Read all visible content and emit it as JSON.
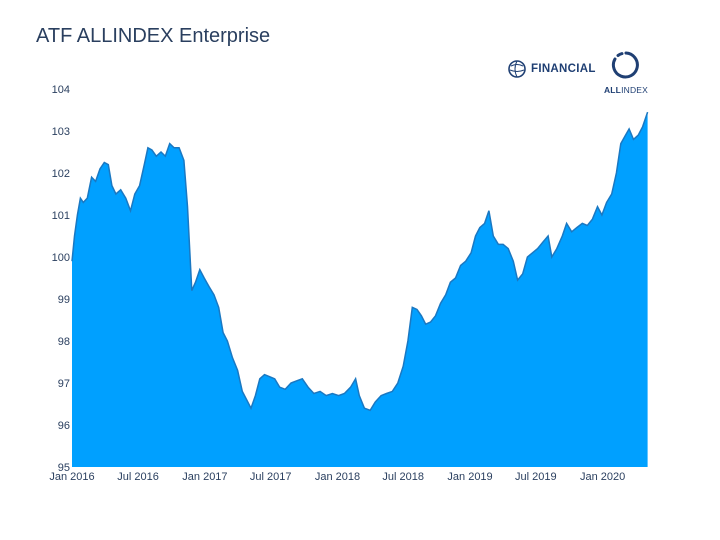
{
  "title": "ATF ALLINDEX Enterprise",
  "logos": {
    "financial": "FINANCIAL",
    "allindex_bold": "ALL",
    "allindex_rest": "INDEX"
  },
  "colors": {
    "fill": "#00a0ff",
    "line": "#1a78c2",
    "title": "#2a3f5f"
  },
  "chart_data": {
    "type": "area",
    "title": "ATF ALLINDEX Enterprise",
    "xlabel": "",
    "ylabel": "",
    "ylim": [
      95,
      104
    ],
    "xlim": [
      "2016-01-01",
      "2020-05-05"
    ],
    "grid": false,
    "yticks": [
      95,
      96,
      97,
      98,
      99,
      100,
      101,
      102,
      103,
      104
    ],
    "xticks": [
      {
        "date": "2016-01-01",
        "label": "Jan 2016"
      },
      {
        "date": "2016-07-01",
        "label": "Jul 2016"
      },
      {
        "date": "2017-01-01",
        "label": "Jan 2017"
      },
      {
        "date": "2017-07-01",
        "label": "Jul 2017"
      },
      {
        "date": "2018-01-01",
        "label": "Jan 2018"
      },
      {
        "date": "2018-07-01",
        "label": "Jul 2018"
      },
      {
        "date": "2019-01-01",
        "label": "Jan 2019"
      },
      {
        "date": "2019-07-01",
        "label": "Jul 2019"
      },
      {
        "date": "2020-01-01",
        "label": "Jan 2020"
      }
    ],
    "series": [
      {
        "points": [
          [
            "2016-01-01",
            99.9
          ],
          [
            "2016-01-08",
            100.5
          ],
          [
            "2016-01-16",
            101.0
          ],
          [
            "2016-01-24",
            101.4
          ],
          [
            "2016-02-01",
            101.3
          ],
          [
            "2016-02-12",
            101.4
          ],
          [
            "2016-02-24",
            101.9
          ],
          [
            "2016-03-06",
            101.8
          ],
          [
            "2016-03-18",
            102.1
          ],
          [
            "2016-03-30",
            102.25
          ],
          [
            "2016-04-10",
            102.2
          ],
          [
            "2016-04-20",
            101.7
          ],
          [
            "2016-05-01",
            101.5
          ],
          [
            "2016-05-14",
            101.6
          ],
          [
            "2016-05-28",
            101.4
          ],
          [
            "2016-06-10",
            101.1
          ],
          [
            "2016-06-22",
            101.5
          ],
          [
            "2016-07-05",
            101.7
          ],
          [
            "2016-07-18",
            102.2
          ],
          [
            "2016-07-28",
            102.6
          ],
          [
            "2016-08-08",
            102.55
          ],
          [
            "2016-08-20",
            102.4
          ],
          [
            "2016-09-02",
            102.5
          ],
          [
            "2016-09-14",
            102.4
          ],
          [
            "2016-09-26",
            102.7
          ],
          [
            "2016-10-08",
            102.6
          ],
          [
            "2016-10-22",
            102.6
          ],
          [
            "2016-11-04",
            102.3
          ],
          [
            "2016-11-14",
            101.2
          ],
          [
            "2016-11-26",
            99.2
          ],
          [
            "2016-12-06",
            99.4
          ],
          [
            "2016-12-18",
            99.7
          ],
          [
            "2016-12-30",
            99.5
          ],
          [
            "2017-01-12",
            99.3
          ],
          [
            "2017-01-26",
            99.1
          ],
          [
            "2017-02-08",
            98.8
          ],
          [
            "2017-02-20",
            98.2
          ],
          [
            "2017-03-04",
            98.0
          ],
          [
            "2017-03-18",
            97.6
          ],
          [
            "2017-04-01",
            97.3
          ],
          [
            "2017-04-14",
            96.8
          ],
          [
            "2017-04-26",
            96.6
          ],
          [
            "2017-05-08",
            96.4
          ],
          [
            "2017-05-20",
            96.7
          ],
          [
            "2017-06-01",
            97.1
          ],
          [
            "2017-06-14",
            97.2
          ],
          [
            "2017-06-28",
            97.15
          ],
          [
            "2017-07-12",
            97.1
          ],
          [
            "2017-07-26",
            96.9
          ],
          [
            "2017-08-10",
            96.85
          ],
          [
            "2017-08-26",
            97.0
          ],
          [
            "2017-09-10",
            97.05
          ],
          [
            "2017-09-26",
            97.1
          ],
          [
            "2017-10-12",
            96.9
          ],
          [
            "2017-10-28",
            96.75
          ],
          [
            "2017-11-14",
            96.8
          ],
          [
            "2017-12-01",
            96.7
          ],
          [
            "2017-12-18",
            96.75
          ],
          [
            "2018-01-04",
            96.7
          ],
          [
            "2018-01-20",
            96.75
          ],
          [
            "2018-02-06",
            96.9
          ],
          [
            "2018-02-20",
            97.1
          ],
          [
            "2018-03-02",
            96.7
          ],
          [
            "2018-03-16",
            96.4
          ],
          [
            "2018-04-01",
            96.35
          ],
          [
            "2018-04-15",
            96.55
          ],
          [
            "2018-05-01",
            96.7
          ],
          [
            "2018-05-16",
            96.75
          ],
          [
            "2018-06-01",
            96.8
          ],
          [
            "2018-06-16",
            97.0
          ],
          [
            "2018-07-01",
            97.4
          ],
          [
            "2018-07-14",
            98.0
          ],
          [
            "2018-07-26",
            98.8
          ],
          [
            "2018-08-08",
            98.75
          ],
          [
            "2018-08-20",
            98.6
          ],
          [
            "2018-09-01",
            98.4
          ],
          [
            "2018-09-14",
            98.45
          ],
          [
            "2018-09-28",
            98.6
          ],
          [
            "2018-10-12",
            98.9
          ],
          [
            "2018-10-26",
            99.1
          ],
          [
            "2018-11-08",
            99.4
          ],
          [
            "2018-11-22",
            99.5
          ],
          [
            "2018-12-06",
            99.8
          ],
          [
            "2018-12-20",
            99.9
          ],
          [
            "2019-01-04",
            100.1
          ],
          [
            "2019-01-16",
            100.5
          ],
          [
            "2019-01-28",
            100.7
          ],
          [
            "2019-02-10",
            100.8
          ],
          [
            "2019-02-22",
            101.1
          ],
          [
            "2019-03-06",
            100.5
          ],
          [
            "2019-03-20",
            100.3
          ],
          [
            "2019-04-02",
            100.3
          ],
          [
            "2019-04-16",
            100.2
          ],
          [
            "2019-04-30",
            99.9
          ],
          [
            "2019-05-12",
            99.45
          ],
          [
            "2019-05-26",
            99.6
          ],
          [
            "2019-06-08",
            100.0
          ],
          [
            "2019-06-22",
            100.1
          ],
          [
            "2019-07-06",
            100.2
          ],
          [
            "2019-07-20",
            100.35
          ],
          [
            "2019-08-04",
            100.5
          ],
          [
            "2019-08-14",
            100.0
          ],
          [
            "2019-08-28",
            100.2
          ],
          [
            "2019-09-12",
            100.5
          ],
          [
            "2019-09-24",
            100.8
          ],
          [
            "2019-10-08",
            100.6
          ],
          [
            "2019-10-22",
            100.7
          ],
          [
            "2019-11-06",
            100.8
          ],
          [
            "2019-11-20",
            100.75
          ],
          [
            "2019-12-04",
            100.9
          ],
          [
            "2019-12-18",
            101.2
          ],
          [
            "2019-12-30",
            101.0
          ],
          [
            "2020-01-12",
            101.3
          ],
          [
            "2020-01-26",
            101.5
          ],
          [
            "2020-02-08",
            102.0
          ],
          [
            "2020-02-20",
            102.7
          ],
          [
            "2020-03-04",
            102.9
          ],
          [
            "2020-03-14",
            103.05
          ],
          [
            "2020-03-26",
            102.8
          ],
          [
            "2020-04-08",
            102.9
          ],
          [
            "2020-04-20",
            103.1
          ],
          [
            "2020-05-04",
            103.45
          ]
        ]
      }
    ]
  }
}
